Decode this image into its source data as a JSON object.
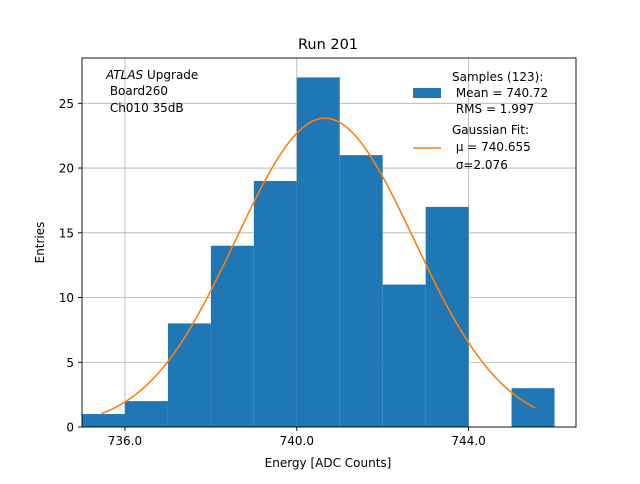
{
  "chart_data": {
    "type": "bar",
    "title": "Run 201",
    "xlabel": "Energy [ADC Counts]",
    "ylabel": "Entries",
    "xlim": [
      735.0,
      746.5
    ],
    "ylim": [
      0,
      28.5
    ],
    "x_ticks": [
      736.0,
      740.0,
      744.0
    ],
    "x_tick_labels": [
      "736.0",
      "740.0",
      "744.0"
    ],
    "y_ticks": [
      0,
      5,
      10,
      15,
      20,
      25
    ],
    "grid": true,
    "annotation": {
      "italic": "ATLAS",
      "rest": " Upgrade",
      "line2": " Board260",
      "line3": " Ch010 35dB"
    },
    "histogram": {
      "name": "Samples (123):",
      "stat_lines": [
        " Mean = 740.72",
        " RMS = 1.997"
      ],
      "color": "#1f77b4",
      "bin_edges": [
        735.0,
        736.0,
        737.0,
        738.0,
        739.0,
        740.0,
        741.0,
        742.0,
        743.0,
        744.0,
        745.0,
        746.0
      ],
      "counts": [
        1,
        2,
        8,
        14,
        19,
        27,
        21,
        11,
        17,
        0,
        3
      ]
    },
    "fit": {
      "name": "Gaussian Fit:",
      "mu_label": " μ = 740.655",
      "sigma_label": " σ=2.076",
      "color": "#ff7f0e",
      "mu": 740.655,
      "sigma": 2.076,
      "amplitude": 23.85,
      "x_range": [
        735.45,
        745.55
      ]
    },
    "legend_position": "top-right"
  }
}
